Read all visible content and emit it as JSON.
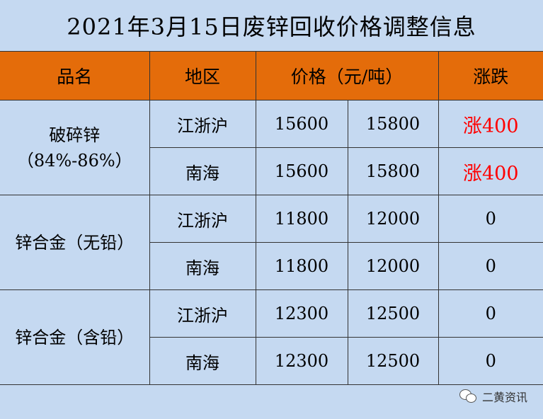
{
  "title": "2021年3月15日废锌回收价格调整信息",
  "headers": {
    "product": "品名",
    "region": "地区",
    "price": "价格（元/吨）",
    "change": "涨跌"
  },
  "rows": [
    {
      "product_line1": "破碎锌",
      "product_line2": "（84%-86%）",
      "region": "江浙沪",
      "low": "15600",
      "high": "15800",
      "change": "涨400"
    },
    {
      "region": "南海",
      "low": "15600",
      "high": "15800",
      "change": "涨400"
    },
    {
      "product_line1": "锌合金（无铅）",
      "region": "江浙沪",
      "low": "11800",
      "high": "12000",
      "change": "0"
    },
    {
      "region": "南海",
      "low": "11800",
      "high": "12000",
      "change": "0"
    },
    {
      "product_line1": "锌合金（含铅）",
      "region": "江浙沪",
      "low": "12300",
      "high": "12500",
      "change": "0"
    },
    {
      "region": "南海",
      "low": "12300",
      "high": "12500",
      "change": "0"
    }
  ],
  "watermark": "二黄资讯",
  "colors": {
    "background": "#c5d9f1",
    "header": "#e46c0a",
    "increase": "#ff0000"
  }
}
